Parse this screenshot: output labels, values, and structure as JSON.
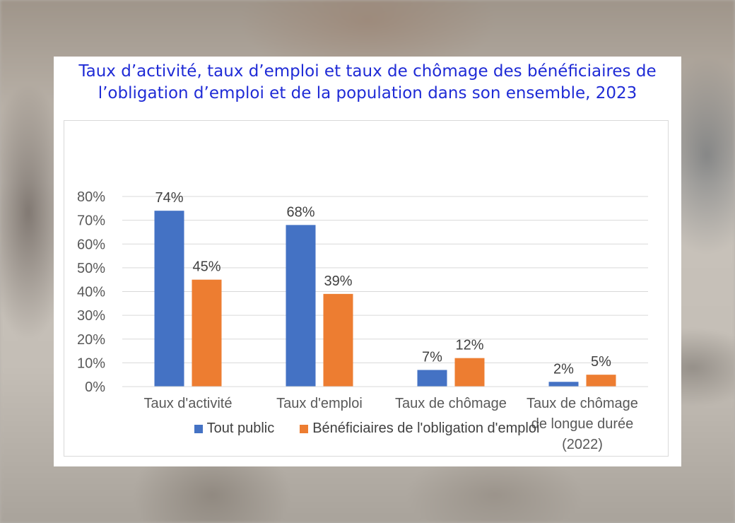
{
  "title": "Taux d’activité, taux d’emploi et taux de chômage des bénéficiaires de l’obligation d’emploi et de la population dans son ensemble, 2023",
  "chart_data": {
    "type": "bar",
    "categories": [
      [
        "Taux d'activité"
      ],
      [
        "Taux d'emploi"
      ],
      [
        "Taux de chômage"
      ],
      [
        "Taux de chômage",
        "de longue durée",
        "(2022)"
      ]
    ],
    "series": [
      {
        "name": "Tout public",
        "values": [
          74,
          68,
          7,
          2
        ],
        "labels": [
          "74%",
          "68%",
          "7%",
          "2%"
        ],
        "color": "#4472c4"
      },
      {
        "name": "Bénéficiaires de l'obligation d'emploi",
        "values": [
          45,
          39,
          12,
          5
        ],
        "labels": [
          "45%",
          "39%",
          "12%",
          "5%"
        ],
        "color": "#ed7d31"
      }
    ],
    "ylim": [
      0,
      80
    ],
    "yticks": [
      "0%",
      "10%",
      "20%",
      "30%",
      "40%",
      "50%",
      "60%",
      "70%",
      "80%"
    ],
    "grid": true,
    "legend": "bottom"
  }
}
